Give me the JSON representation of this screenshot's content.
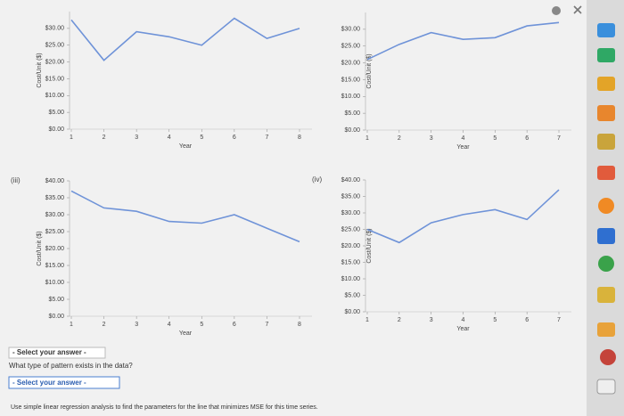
{
  "chart_data": [
    {
      "type": "line",
      "y_label": "Cost/Unit ($)",
      "x_label": "Year",
      "color": "#6f93d8",
      "x": [
        1,
        2,
        3,
        4,
        5,
        6,
        7,
        8
      ],
      "values": [
        32.5,
        20.5,
        29,
        27.5,
        25,
        33,
        27,
        30
      ],
      "xlim": [
        1,
        8
      ],
      "xticks": [
        1,
        2,
        3,
        4,
        5,
        6,
        7,
        8
      ],
      "ylim": [
        0,
        35
      ],
      "yticks": [
        {
          "value": 0,
          "label": "$0.00"
        },
        {
          "value": 5,
          "label": "$5.00"
        },
        {
          "value": 10,
          "label": "$10.00"
        },
        {
          "value": 15,
          "label": "$15.00"
        },
        {
          "value": 20,
          "label": "$20.00"
        },
        {
          "value": 25,
          "label": "$25.00"
        },
        {
          "value": 30,
          "label": "$30.00"
        }
      ]
    },
    {
      "type": "line",
      "y_label": "Cost/Unit ($)",
      "x_label": "Year",
      "color": "#6f93d8",
      "x": [
        1,
        2,
        3,
        4,
        5,
        6,
        7
      ],
      "values": [
        21,
        25.5,
        29,
        27,
        27.5,
        31,
        32
      ],
      "xlim": [
        1,
        7
      ],
      "xticks": [
        1,
        2,
        3,
        4,
        5,
        6,
        7
      ],
      "ylim": [
        0,
        35
      ],
      "yticks": [
        {
          "value": 0,
          "label": "$0.00"
        },
        {
          "value": 5,
          "label": "$5.00"
        },
        {
          "value": 10,
          "label": "$10.00"
        },
        {
          "value": 15,
          "label": "$15.00"
        },
        {
          "value": 20,
          "label": "$20.00"
        },
        {
          "value": 25,
          "label": "$25.00"
        },
        {
          "value": 30,
          "label": "$30.00"
        }
      ]
    },
    {
      "type": "line",
      "label": "(iii)",
      "y_label": "Cost/Unit ($)",
      "x_label": "Year",
      "color": "#6f93d8",
      "x": [
        1,
        2,
        3,
        4,
        5,
        6,
        7,
        8
      ],
      "values": [
        37,
        32,
        31,
        28,
        27.5,
        30,
        26,
        22
      ],
      "xlim": [
        1,
        8
      ],
      "xticks": [
        1,
        2,
        3,
        4,
        5,
        6,
        7,
        8
      ],
      "ylim": [
        0,
        40
      ],
      "yticks": [
        {
          "value": 0,
          "label": "$0.00"
        },
        {
          "value": 5,
          "label": "$5.00"
        },
        {
          "value": 10,
          "label": "$10.00"
        },
        {
          "value": 15,
          "label": "$15.00"
        },
        {
          "value": 20,
          "label": "$20.00"
        },
        {
          "value": 25,
          "label": "$25.00"
        },
        {
          "value": 30,
          "label": "$30.00"
        },
        {
          "value": 35,
          "label": "$35.00"
        },
        {
          "value": 40,
          "label": "$40.00"
        }
      ]
    },
    {
      "type": "line",
      "label": "(iv)",
      "y_label": "Cost/Unit ($)",
      "x_label": "Year",
      "color": "#6f93d8",
      "x": [
        1,
        2,
        3,
        4,
        5,
        6,
        7
      ],
      "values": [
        25,
        21,
        27,
        29.5,
        31,
        28,
        37
      ],
      "xlim": [
        1,
        7
      ],
      "xticks": [
        1,
        2,
        3,
        4,
        5,
        6,
        7
      ],
      "ylim": [
        0,
        40
      ],
      "yticks": [
        {
          "value": 0,
          "label": "$0.00"
        },
        {
          "value": 5,
          "label": "$5.00"
        },
        {
          "value": 10,
          "label": "$10.00"
        },
        {
          "value": 15,
          "label": "$15.00"
        },
        {
          "value": 20,
          "label": "$20.00"
        },
        {
          "value": 25,
          "label": "$25.00"
        },
        {
          "value": 30,
          "label": "$30.00"
        },
        {
          "value": 35,
          "label": "$35.00"
        },
        {
          "value": 40,
          "label": "$40.00"
        }
      ]
    }
  ],
  "select_1": "- Select your answer -",
  "question": "What type of pattern exists in the data?",
  "select_2": "- Select your answer -",
  "instruction": "Use simple linear regression analysis to find the parameters for the line that minimizes MSE for this time series."
}
